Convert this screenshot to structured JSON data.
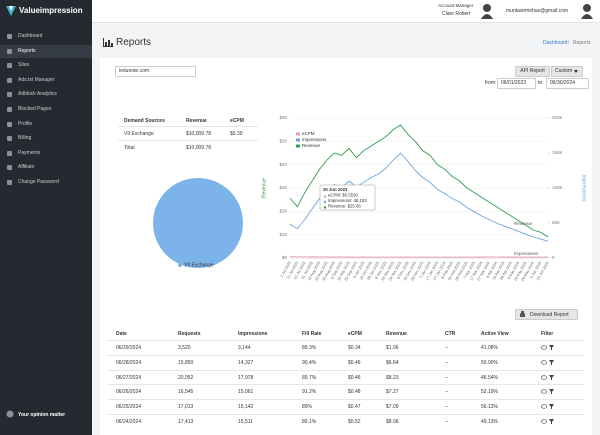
{
  "sidebar": {
    "brand": "Valueimpression",
    "menu": [
      "Dashboard",
      "Reports",
      "Sites",
      "Ads.txt Manager",
      "Adblock Analytics",
      "Blocked Pages",
      "Profile",
      "Billing",
      "Payments",
      "Affiliate",
      "Change Password"
    ],
    "footer": "Your opinion matter"
  },
  "topbar": {
    "manager_label": "Account Manager",
    "manager_name": "Clare Robert",
    "email": "muntasirmirhaz@gmail.com"
  },
  "page": {
    "title": "Reports",
    "breadcrumb": [
      "Dashboard",
      "Reports"
    ]
  },
  "filters": {
    "site": "iedunote.com",
    "api_button": "API Report",
    "range_button": "Custom",
    "from_label": "from:",
    "from": "06/01/2023",
    "to_label": "to:",
    "to": "06/30/2024"
  },
  "summary": {
    "headers": [
      "Demand Sources",
      "Revenue",
      "eCPM"
    ],
    "rows": [
      [
        "VII Exchange",
        "$10,009.78",
        "$0.39"
      ],
      [
        "Total",
        "$10,009.78"
      ]
    ]
  },
  "chart_data": [
    {
      "type": "line",
      "y_label": "Revenue",
      "y2_label": "Impressions",
      "legend": "upper left",
      "grid": true,
      "categories": [
        "1 Jul 2023",
        "11 Jul 2023",
        "21 Jul 2023",
        "31 Jul 2023",
        "10 Aug 2023",
        "20 Aug 2023",
        "30 Aug 2023",
        "9 Sep 2023",
        "19 Sep 2023",
        "29 Sep 2023",
        "9 Oct 2023",
        "19 Oct 2023",
        "29 Oct 2023",
        "8 Nov 2023",
        "18 Nov 2023",
        "28 Nov 2023",
        "8 Dec 2023",
        "18 Dec 2023",
        "28 Dec 2023",
        "7 Jan 2024",
        "17 Jan 2024",
        "27 Jan 2024",
        "6 Feb 2024",
        "16 Feb 2024",
        "26 Feb 2024",
        "7 Mar 2024",
        "17 Mar 2024",
        "27 Mar 2024",
        "6 Apr 2024",
        "16 Apr 2024",
        "26 Apr 2024",
        "6 May 2024",
        "16 May 2024",
        "26 May 2024",
        "5 Jun 2024",
        "15 Jun 2024"
      ],
      "series": [
        {
          "name": "eCPM",
          "color": "#e8a0a8",
          "values": [
            0.553,
            0.52,
            0.51,
            0.48,
            0.45,
            0.44,
            0.43,
            0.44,
            0.43,
            0.42,
            0.43,
            0.42,
            0.42,
            0.41,
            0.39,
            0.38,
            0.38,
            0.4,
            0.4,
            0.41,
            0.41,
            0.41,
            0.41,
            0.41,
            0.42,
            0.42,
            0.43,
            0.44,
            0.44,
            0.43,
            0.43,
            0.42,
            0.41,
            0.4,
            0.41,
            0.38
          ]
        },
        {
          "name": "Impressions",
          "color": "#6aa4e0",
          "axis": "y2",
          "values": [
            48153,
            42000,
            55000,
            70000,
            85000,
            95000,
            105000,
            100000,
            110000,
            102000,
            108000,
            115000,
            120000,
            128000,
            140000,
            150000,
            138000,
            125000,
            115000,
            108000,
            98000,
            92000,
            85000,
            80000,
            72000,
            66000,
            60000,
            55000,
            50000,
            46000,
            42000,
            38000,
            34000,
            30000,
            27000,
            24000
          ]
        },
        {
          "name": "Revenue",
          "color": "#2e9e4f",
          "values": [
            25.66,
            22,
            28,
            33,
            38,
            42,
            45,
            44,
            47,
            43,
            46,
            48,
            50,
            52,
            55,
            57,
            53,
            50,
            46,
            44,
            40,
            38,
            35,
            33,
            30,
            28,
            26,
            24,
            22,
            20,
            18,
            16,
            14,
            12,
            11,
            9
          ]
        }
      ],
      "ylim": [
        0,
        60
      ],
      "yticks": [
        {
          "value": 0,
          "label": "$0"
        },
        {
          "value": 10,
          "label": "$10"
        },
        {
          "value": 20,
          "label": "$20"
        },
        {
          "value": 30,
          "label": "$30"
        },
        {
          "value": 40,
          "label": "$40"
        },
        {
          "value": 50,
          "label": "$50"
        },
        {
          "value": 60,
          "label": "$60"
        }
      ],
      "y2lim": [
        0,
        200000
      ],
      "y2ticks": [
        0,
        {
          "value": 50000,
          "label": "50K"
        },
        {
          "value": 100000,
          "label": "100K"
        },
        {
          "value": 150000,
          "label": "150K"
        },
        {
          "value": 200000,
          "label": "200K"
        }
      ],
      "tooltip": [
        "30 Jun 2023",
        "eCPM: $0.5530",
        "Impressions: 48,153",
        "Revenue: $25.66"
      ],
      "end_labels": [
        "Revenue",
        "Impressions"
      ]
    },
    {
      "type": "pie",
      "categories": [
        "VII Exchange"
      ],
      "values": [
        10009.78
      ],
      "colors": [
        "#7cb4ea"
      ]
    }
  ],
  "download_button": "Download Report",
  "table": {
    "headers": [
      "Date",
      "Requests",
      "Impressions",
      "Fill Rate",
      "eCPM",
      "Revenue",
      "CTR",
      "Active View",
      "Filter"
    ],
    "rows": [
      [
        "06/29/2024",
        "3,520",
        "3,144",
        "89.3%",
        "$0.34",
        "$1.06",
        "--",
        "41.08%"
      ],
      [
        "06/28/2024",
        "15,850",
        "14,327",
        "90.4%",
        "$0.46",
        "$6.64",
        "--",
        "50.00%"
      ],
      [
        "06/27/2024",
        "20,052",
        "17,978",
        "89.7%",
        "$0.46",
        "$8.23",
        "--",
        "46.54%"
      ],
      [
        "06/26/2024",
        "16,545",
        "15,061",
        "91.2%",
        "$0.48",
        "$7.27",
        "--",
        "52.19%"
      ],
      [
        "06/25/2024",
        "17,013",
        "15,142",
        "89%",
        "$0.47",
        "$7.09",
        "--",
        "56.13%"
      ],
      [
        "06/24/2024",
        "17,413",
        "15,511",
        "89.1%",
        "$0.52",
        "$8.06",
        "--",
        "49.13%"
      ]
    ]
  }
}
